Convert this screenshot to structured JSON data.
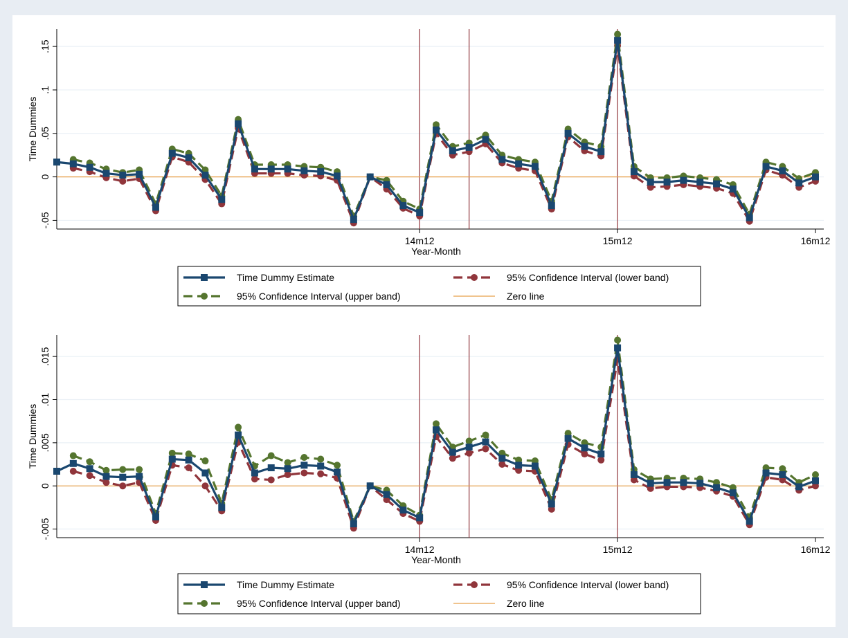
{
  "colors": {
    "background": "#e8edf3",
    "panel": "#ffffff",
    "estimate": "#1a476f",
    "lower": "#90353b",
    "upper": "#55752f",
    "zero": "#e8a04a",
    "vline": "#90353b",
    "grid": "#eaf0f6"
  },
  "chart_data": [
    {
      "type": "line",
      "xlabel": "Year-Month",
      "ylabel": "Time Dummies",
      "ylim": [
        -0.06,
        0.17
      ],
      "yticks": [
        -0.05,
        0,
        0.05,
        0.1,
        0.15
      ],
      "ytick_labels": [
        "-.05",
        "0",
        ".05",
        ".1",
        ".15"
      ],
      "xlim": [
        0,
        46
      ],
      "xticks": [
        22,
        34,
        46
      ],
      "xtick_labels": [
        "14m12",
        "15m12",
        "16m12"
      ],
      "vlines": [
        22,
        25,
        34
      ],
      "grid": true,
      "legend_position": "bottom",
      "x": [
        0,
        1,
        2,
        3,
        4,
        5,
        6,
        7,
        8,
        9,
        10,
        11,
        12,
        13,
        14,
        15,
        16,
        17,
        18,
        19,
        20,
        21,
        22,
        23,
        24,
        25,
        26,
        27,
        28,
        29,
        30,
        31,
        32,
        33,
        34,
        35,
        36,
        37,
        38,
        39,
        40,
        41,
        42,
        43,
        44,
        45,
        46
      ],
      "series": [
        {
          "name": "Time Dummy Estimate",
          "key": "estimate",
          "values": [
            0.017,
            0.015,
            0.011,
            0.004,
            0.002,
            0.003,
            -0.035,
            0.027,
            0.022,
            0.002,
            -0.026,
            0.061,
            0.009,
            0.009,
            0.009,
            0.007,
            0.006,
            0.001,
            -0.049,
            0.0,
            -0.009,
            -0.033,
            -0.041,
            0.054,
            0.03,
            0.034,
            0.043,
            0.02,
            0.015,
            0.012,
            -0.033,
            0.05,
            0.035,
            0.029,
            0.157,
            0.006,
            -0.006,
            -0.006,
            -0.004,
            -0.006,
            -0.008,
            -0.014,
            -0.047,
            0.012,
            0.007,
            -0.007,
            0.0
          ]
        },
        {
          "name": "95% Confidence Interval (lower band)",
          "key": "lower",
          "values": [
            null,
            0.01,
            0.006,
            -0.001,
            -0.005,
            -0.002,
            -0.039,
            0.023,
            0.017,
            -0.003,
            -0.031,
            0.056,
            0.004,
            0.004,
            0.004,
            0.002,
            0.001,
            -0.004,
            -0.053,
            0.0,
            -0.014,
            -0.036,
            -0.045,
            0.05,
            0.025,
            0.029,
            0.038,
            0.016,
            0.01,
            0.007,
            -0.037,
            0.046,
            0.03,
            0.024,
            0.151,
            0.001,
            -0.012,
            -0.011,
            -0.009,
            -0.011,
            -0.013,
            -0.019,
            -0.051,
            0.008,
            0.002,
            -0.012,
            -0.005
          ]
        },
        {
          "name": "95% Confidence Interval (upper band)",
          "key": "upper",
          "values": [
            null,
            0.02,
            0.016,
            0.009,
            0.005,
            0.008,
            -0.031,
            0.032,
            0.027,
            0.008,
            -0.022,
            0.066,
            0.014,
            0.014,
            0.014,
            0.012,
            0.011,
            0.006,
            -0.045,
            0.0,
            -0.004,
            -0.028,
            -0.037,
            0.06,
            0.035,
            0.039,
            0.048,
            0.025,
            0.02,
            0.017,
            -0.028,
            0.055,
            0.04,
            0.035,
            0.164,
            0.012,
            -0.001,
            -0.001,
            0.001,
            -0.001,
            -0.003,
            -0.009,
            -0.043,
            0.017,
            0.012,
            -0.002,
            0.005
          ]
        },
        {
          "name": "Zero line",
          "key": "zero",
          "values": [
            0,
            0,
            0,
            0,
            0,
            0,
            0,
            0,
            0,
            0,
            0,
            0,
            0,
            0,
            0,
            0,
            0,
            0,
            0,
            0,
            0,
            0,
            0,
            0,
            0,
            0,
            0,
            0,
            0,
            0,
            0,
            0,
            0,
            0,
            0,
            0,
            0,
            0,
            0,
            0,
            0,
            0,
            0,
            0,
            0,
            0,
            0
          ]
        }
      ],
      "legend": [
        {
          "label": "Time Dummy Estimate",
          "key": "estimate"
        },
        {
          "label": "95% Confidence Interval (lower band)",
          "key": "lower"
        },
        {
          "label": "95% Confidence Interval (upper band)",
          "key": "upper"
        },
        {
          "label": "Zero line",
          "key": "zero"
        }
      ]
    },
    {
      "type": "line",
      "xlabel": "Year-Month",
      "ylabel": "Time Dummies",
      "ylim": [
        -0.006,
        0.0175
      ],
      "yticks": [
        -0.005,
        0,
        0.005,
        0.01,
        0.015
      ],
      "ytick_labels": [
        "-.005",
        "0",
        ".005",
        ".01",
        ".015"
      ],
      "xlim": [
        0,
        46
      ],
      "xticks": [
        22,
        34,
        46
      ],
      "xtick_labels": [
        "14m12",
        "15m12",
        "16m12"
      ],
      "vlines": [
        22,
        25,
        34
      ],
      "grid": true,
      "legend_position": "bottom",
      "x": [
        0,
        1,
        2,
        3,
        4,
        5,
        6,
        7,
        8,
        9,
        10,
        11,
        12,
        13,
        14,
        15,
        16,
        17,
        18,
        19,
        20,
        21,
        22,
        23,
        24,
        25,
        26,
        27,
        28,
        29,
        30,
        31,
        32,
        33,
        34,
        35,
        36,
        37,
        38,
        39,
        40,
        41,
        42,
        43,
        44,
        45,
        46
      ],
      "series": [
        {
          "name": "Time Dummy Estimate",
          "key": "estimate",
          "values": [
            0.0017,
            0.0026,
            0.002,
            0.0011,
            0.001,
            0.0011,
            -0.0036,
            0.0031,
            0.003,
            0.0015,
            -0.0025,
            0.0059,
            0.0015,
            0.0021,
            0.002,
            0.0024,
            0.0023,
            0.0016,
            -0.0044,
            0.0,
            -0.001,
            -0.0028,
            -0.0037,
            0.0065,
            0.0039,
            0.0045,
            0.0051,
            0.0032,
            0.0024,
            0.0023,
            -0.0021,
            0.0055,
            0.0044,
            0.0037,
            0.016,
            0.0013,
            0.0003,
            0.0004,
            0.0004,
            0.0003,
            -0.0002,
            -0.0008,
            -0.0041,
            0.0015,
            0.0013,
            -0.0001,
            0.0006
          ]
        },
        {
          "name": "95% Confidence Interval (lower band)",
          "key": "lower",
          "values": [
            null,
            0.0017,
            0.0012,
            0.0004,
            0.0,
            0.0004,
            -0.004,
            0.0024,
            0.0021,
            0.0,
            -0.0029,
            0.0051,
            0.0008,
            0.0007,
            0.0013,
            0.0015,
            0.0014,
            0.0009,
            -0.0049,
            0.0,
            -0.0016,
            -0.0032,
            -0.0041,
            0.0057,
            0.0032,
            0.0038,
            0.0043,
            0.0025,
            0.0018,
            0.0017,
            -0.0027,
            0.0048,
            0.0037,
            0.003,
            0.0147,
            0.0007,
            -0.0003,
            -0.0001,
            -0.0001,
            -0.0002,
            -0.0006,
            -0.0012,
            -0.0045,
            0.001,
            0.0007,
            -0.0005,
            0.0
          ]
        },
        {
          "name": "95% Confidence Interval (upper band)",
          "key": "upper",
          "values": [
            null,
            0.0035,
            0.0028,
            0.0018,
            0.0019,
            0.0019,
            -0.0032,
            0.0038,
            0.0037,
            0.0029,
            -0.002,
            0.0068,
            0.0023,
            0.0035,
            0.0027,
            0.0033,
            0.0031,
            0.0024,
            -0.0041,
            0.0,
            -0.0005,
            -0.0023,
            -0.0034,
            0.0072,
            0.0045,
            0.0052,
            0.0059,
            0.0038,
            0.003,
            0.0029,
            -0.0016,
            0.0061,
            0.005,
            0.0045,
            0.0169,
            0.0019,
            0.0008,
            0.0009,
            0.0009,
            0.0008,
            0.0004,
            -0.0002,
            -0.0036,
            0.0021,
            0.002,
            0.0004,
            0.0013
          ]
        },
        {
          "name": "Zero line",
          "key": "zero",
          "values": [
            0,
            0,
            0,
            0,
            0,
            0,
            0,
            0,
            0,
            0,
            0,
            0,
            0,
            0,
            0,
            0,
            0,
            0,
            0,
            0,
            0,
            0,
            0,
            0,
            0,
            0,
            0,
            0,
            0,
            0,
            0,
            0,
            0,
            0,
            0,
            0,
            0,
            0,
            0,
            0,
            0,
            0,
            0,
            0,
            0,
            0,
            0
          ]
        }
      ],
      "legend": [
        {
          "label": "Time Dummy Estimate",
          "key": "estimate"
        },
        {
          "label": "95% Confidence Interval (lower band)",
          "key": "lower"
        },
        {
          "label": "95% Confidence Interval (upper band)",
          "key": "upper"
        },
        {
          "label": "Zero line",
          "key": "zero"
        }
      ]
    }
  ]
}
